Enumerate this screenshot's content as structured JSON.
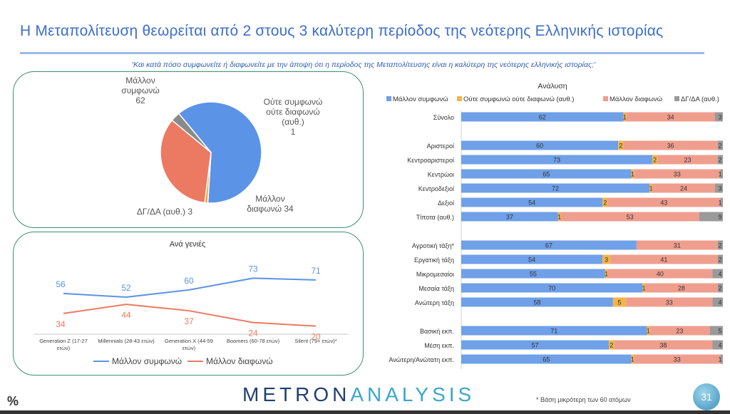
{
  "title": "Η Μεταπολίτευση θεωρείται από 2 στους 3 καλύτερη περίοδος της νεότερης Ελληνικής ιστορίας",
  "subtitle": "'Και κατά πόσο συμφωνείτε ή διαφωνείτε με την άποψη ότι η περίοδος της Μεταπολίτευσης είναι η καλύτερη της νεότερης ελληνικής ιστορίας;'",
  "footer": {
    "pct_icon": "%",
    "logo_a": "METRON",
    "logo_b": "ANALYSIS",
    "note": "* Βάση μικρότερη των 60 ατόμων",
    "page": "31"
  },
  "chart_data": [
    {
      "type": "pie",
      "slices": [
        {
          "label_lines": [
            "Μάλλον",
            "συμφωνώ",
            "62"
          ],
          "value": 62,
          "color": "#5b93e6"
        },
        {
          "label_lines": [
            "Ούτε συμφωνώ",
            "ούτε διαφωνώ",
            "(αυθ.)",
            "1"
          ],
          "value": 1,
          "color": "#f2a93b"
        },
        {
          "label_lines": [
            "Μάλλον",
            "διαφωνώ 34"
          ],
          "value": 34,
          "color": "#ec7a62"
        },
        {
          "label_lines": [
            "ΔΓ/ΔΑ (αυθ.) 3"
          ],
          "value": 3,
          "color": "#8a8a8a"
        }
      ]
    },
    {
      "type": "line",
      "title": "Ανά γενιές",
      "categories": [
        "Generation Z (17-27 ετών)",
        "Millennials (28-43 ετών)",
        "Generation X (44-59 ετών)",
        "Boomers (60-78 ετών)",
        "Silent (79+ ετών)*"
      ],
      "category_lines": [
        [
          "Generation Z (17-27",
          "ετών)"
        ],
        [
          "Millennials (28-43 ετών)"
        ],
        [
          "Generation X (44-59",
          "ετών)"
        ],
        [
          "Boomers (60-78 ετών)"
        ],
        [
          "Silent (79+ ετών)*"
        ]
      ],
      "series": [
        {
          "name": "Μάλλον συμφωνώ",
          "values": [
            56,
            52,
            60,
            73,
            71
          ],
          "color": "#5b93e6"
        },
        {
          "name": "Μάλλον διαφωνώ",
          "values": [
            34,
            44,
            37,
            24,
            20
          ],
          "color": "#ec7a62"
        }
      ]
    },
    {
      "type": "bar",
      "stacked": true,
      "horizontal": true,
      "title": "Ανάλυση",
      "legend": [
        "Μάλλον συμφωνώ",
        "Ούτε συμφωνώ ούτε διαφωνώ (αυθ.)",
        "Μάλλον διαφωνώ",
        "ΔΓ/ΔΑ (αυθ.)"
      ],
      "colors": [
        "#6fa0e8",
        "#f2b54a",
        "#ef9e8e",
        "#9a9a9a"
      ],
      "groups": [
        [
          {
            "label": "Σύνολο",
            "values": [
              62,
              1,
              34,
              3
            ]
          }
        ],
        [
          {
            "label": "Αριστεροί",
            "values": [
              60,
              2,
              36,
              2
            ]
          },
          {
            "label": "Κεντροαριστεροί",
            "values": [
              73,
              2,
              23,
              2
            ]
          },
          {
            "label": "Κεντρώοι",
            "values": [
              65,
              1,
              33,
              1
            ]
          },
          {
            "label": "Κεντροδεξιοί",
            "values": [
              72,
              1,
              24,
              3
            ]
          },
          {
            "label": "Δεξιοί",
            "values": [
              54,
              2,
              43,
              1
            ]
          },
          {
            "label": "Τίποτα (αυθ.)",
            "values": [
              37,
              1,
              53,
              9
            ]
          }
        ],
        [
          {
            "label": "Αγροτική τάξη*",
            "values": [
              67,
              0,
              31,
              2
            ]
          },
          {
            "label": "Εργατική τάξη",
            "values": [
              54,
              3,
              41,
              2
            ]
          },
          {
            "label": "Μικρομεσαίοι",
            "values": [
              55,
              1,
              40,
              4
            ]
          },
          {
            "label": "Μεσαία τάξη",
            "values": [
              70,
              1,
              28,
              2
            ]
          },
          {
            "label": "Ανώτερη τάξη",
            "values": [
              58,
              5,
              33,
              4
            ]
          }
        ],
        [
          {
            "label": "Βασική εκπ.",
            "values": [
              71,
              1,
              23,
              5
            ]
          },
          {
            "label": "Μέση εκπ.",
            "values": [
              57,
              2,
              38,
              4
            ]
          },
          {
            "label": "Ανώτερη/Ανώτατη εκπ.",
            "values": [
              65,
              1,
              33,
              1
            ]
          }
        ]
      ]
    }
  ]
}
